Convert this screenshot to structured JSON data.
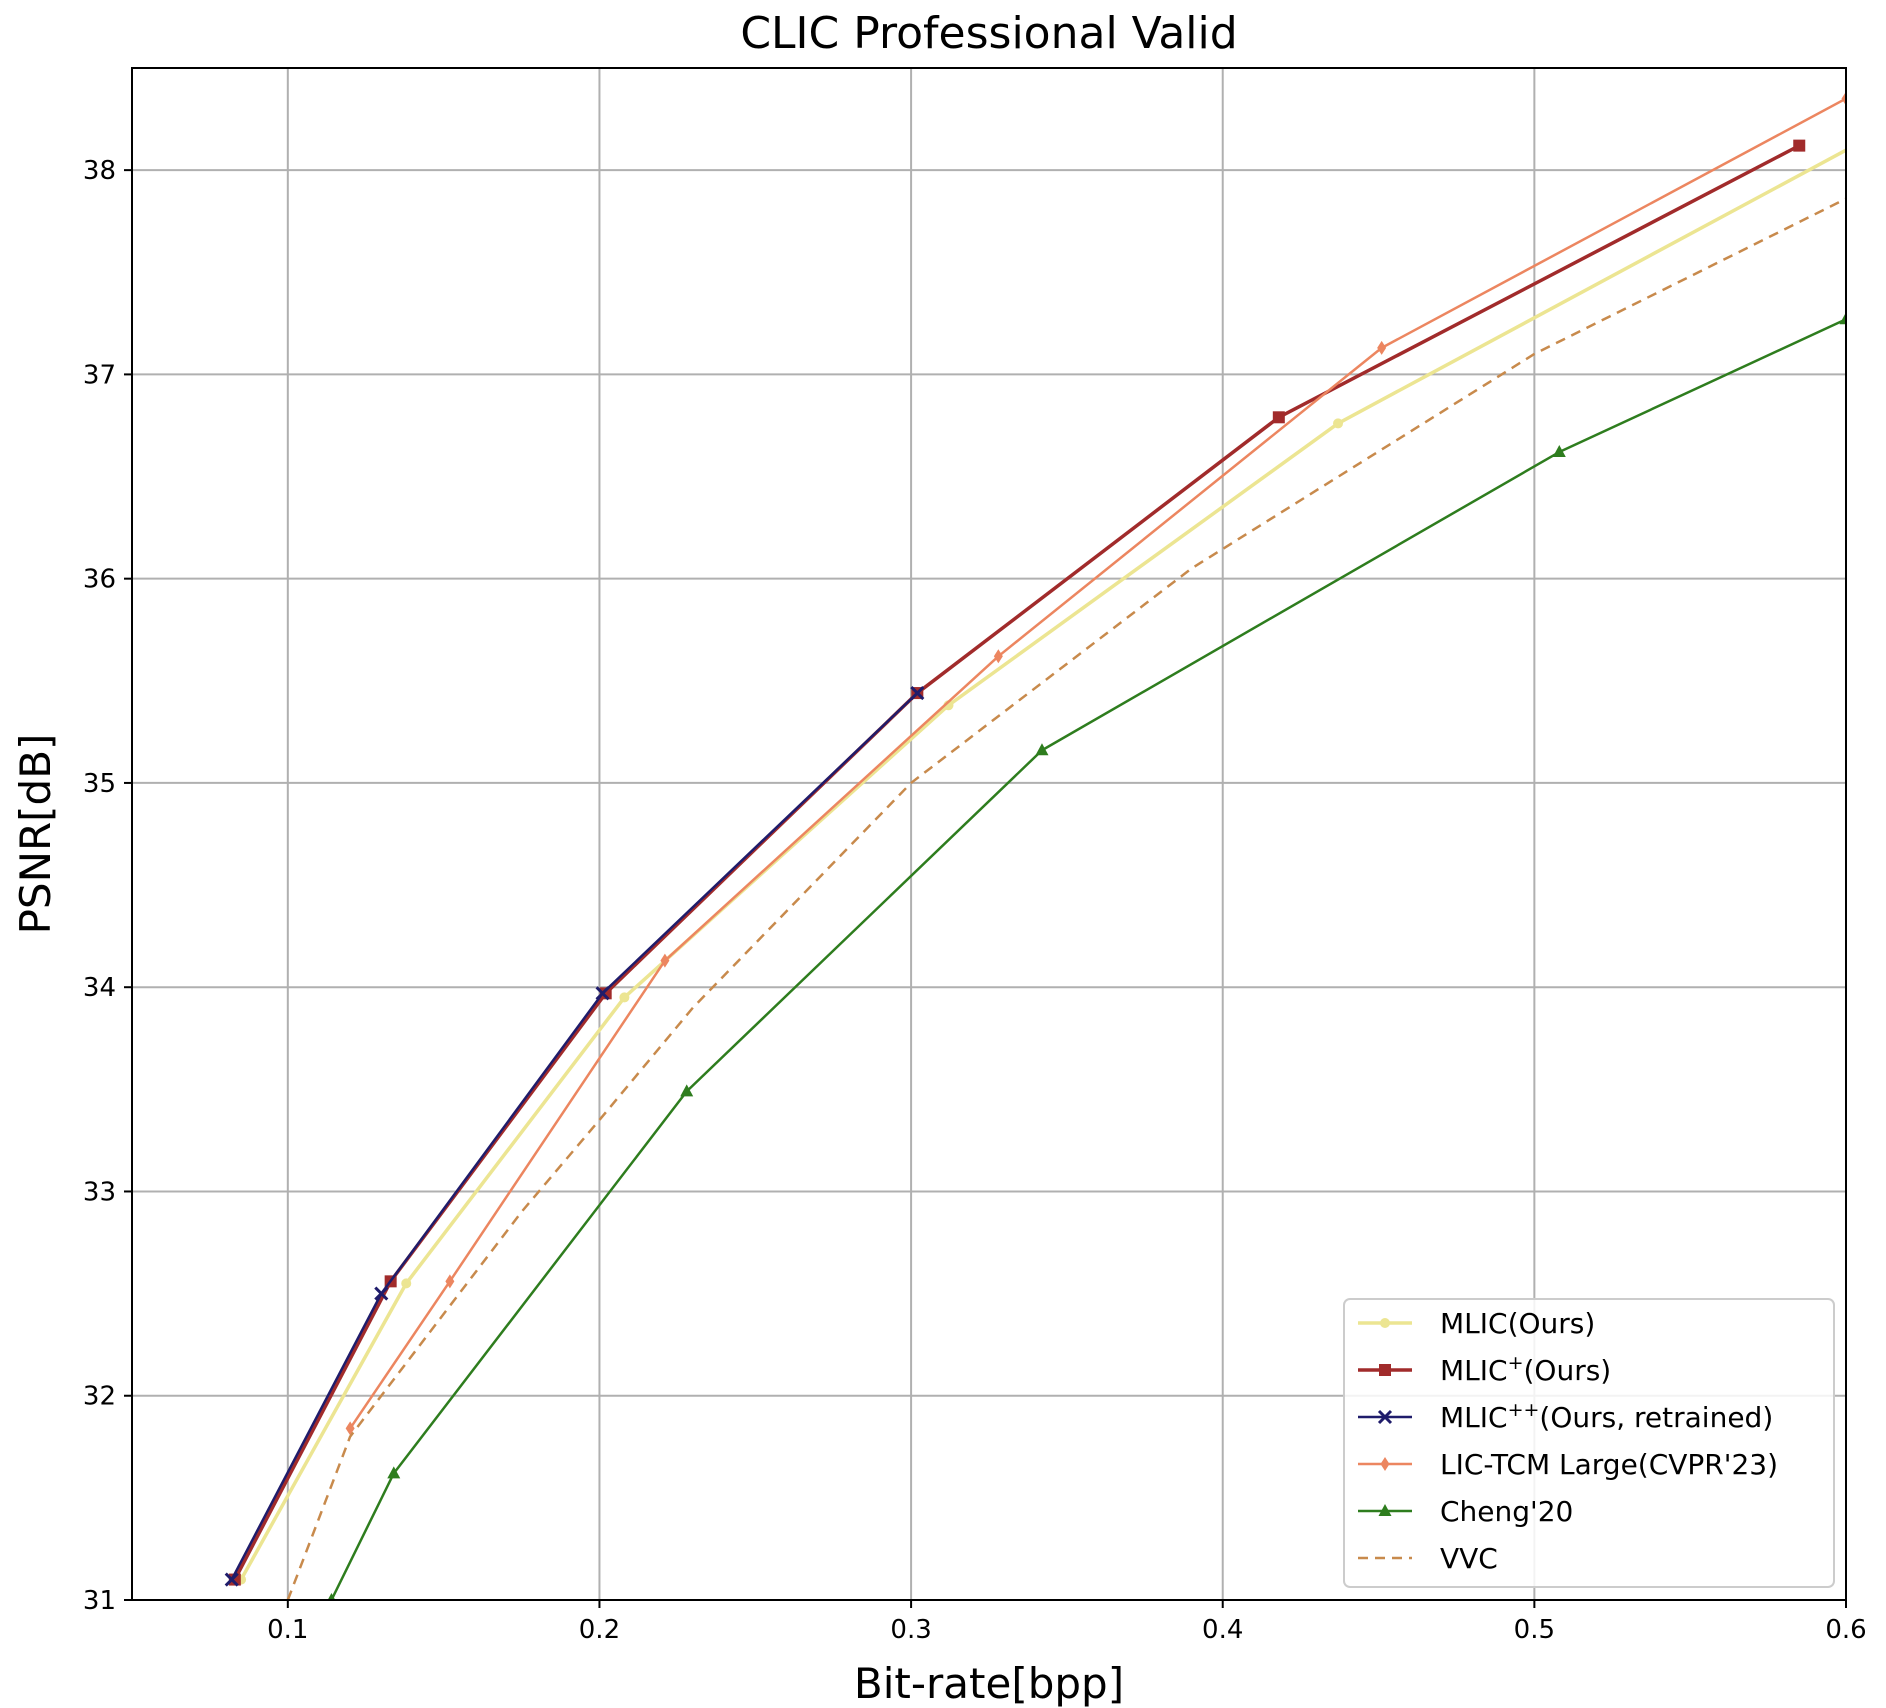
{
  "chart_data": {
    "type": "line",
    "title": "CLIC Professional Valid",
    "xlabel": "Bit-rate[bpp]",
    "ylabel": "PSNR[dB]",
    "xlim": [
      0.05,
      0.6
    ],
    "ylim": [
      31,
      38.5
    ],
    "xticks": [
      0.1,
      0.2,
      0.3,
      0.4,
      0.5,
      0.6
    ],
    "yticks": [
      31,
      32,
      33,
      34,
      35,
      36,
      37,
      38
    ],
    "xtick_labels": [
      "0.1",
      "0.2",
      "0.3",
      "0.4",
      "0.5",
      "0.6"
    ],
    "ytick_labels": [
      "31",
      "32",
      "33",
      "34",
      "35",
      "36",
      "37",
      "38"
    ],
    "grid": true,
    "legend_position": "lower-right",
    "series": [
      {
        "name": "MLIC(Ours)",
        "legend_base": "MLIC(Ours)",
        "legend_sup": "",
        "legend_tail": "",
        "color": "#ece592",
        "marker": "circle",
        "dash": "",
        "width": 3.5,
        "x": [
          0.085,
          0.138,
          0.208,
          0.312,
          0.437,
          0.61
        ],
        "y": [
          31.1,
          32.55,
          33.95,
          35.38,
          36.76,
          38.18
        ]
      },
      {
        "name": "MLIC+(Ours)",
        "legend_base": "MLIC",
        "legend_sup": "+",
        "legend_tail": "(Ours)",
        "color": "#a12b2b",
        "marker": "square",
        "dash": "",
        "width": 3.5,
        "x": [
          0.083,
          0.133,
          0.202,
          0.302,
          0.418,
          0.585
        ],
        "y": [
          31.1,
          32.56,
          33.97,
          35.44,
          36.79,
          38.12
        ]
      },
      {
        "name": "MLIC++(Ours, retrained)",
        "legend_base": "MLIC",
        "legend_sup": "++",
        "legend_tail": "(Ours, retrained)",
        "color": "#1f1c6b",
        "marker": "x",
        "dash": "",
        "width": 2.5,
        "x": [
          0.082,
          0.13,
          0.201,
          0.302
        ],
        "y": [
          31.1,
          32.5,
          33.97,
          35.44
        ]
      },
      {
        "name": "LIC-TCM Large(CVPR'23)",
        "legend_base": "LIC-TCM Large(CVPR'23)",
        "legend_sup": "",
        "legend_tail": "",
        "color": "#ec8660",
        "marker": "diamond",
        "dash": "",
        "width": 2.5,
        "x": [
          0.12,
          0.152,
          0.221,
          0.328,
          0.451,
          0.6
        ],
        "y": [
          31.84,
          32.56,
          34.13,
          35.62,
          37.13,
          38.35
        ]
      },
      {
        "name": "Cheng'20",
        "legend_base": "Cheng'20",
        "legend_sup": "",
        "legend_tail": "",
        "color": "#2e7d1e",
        "marker": "triangle",
        "dash": "",
        "width": 2.5,
        "x": [
          0.114,
          0.134,
          0.228,
          0.342,
          0.508,
          0.6
        ],
        "y": [
          31.0,
          31.62,
          33.49,
          35.16,
          36.62,
          37.27
        ]
      },
      {
        "name": "VVC",
        "legend_base": "VVC",
        "legend_sup": "",
        "legend_tail": "",
        "color": "#c88a4c",
        "marker": "none",
        "dash": "10,7",
        "width": 2.5,
        "x": [
          0.1,
          0.12,
          0.15,
          0.175,
          0.2,
          0.23,
          0.3,
          0.39,
          0.5,
          0.6
        ],
        "y": [
          31.0,
          31.8,
          32.4,
          32.9,
          33.35,
          33.9,
          35.0,
          36.05,
          37.1,
          37.86
        ]
      }
    ]
  }
}
